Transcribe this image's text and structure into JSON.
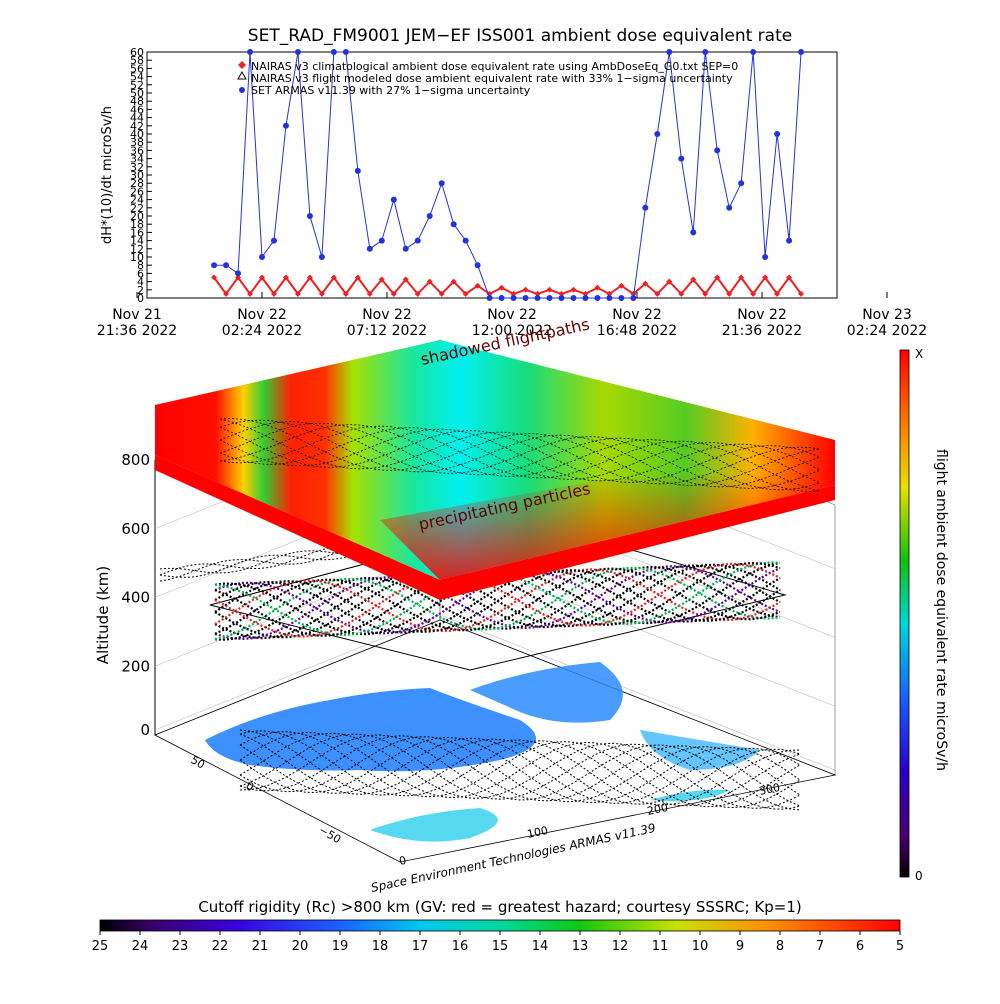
{
  "chart_data": [
    {
      "type": "line",
      "title": "SET_RAD_FM9001  JEM−EF ISS001 ambient dose equivalent rate",
      "ylabel": "dH*(10)/dt microSv/h",
      "ylim": [
        0,
        60
      ],
      "y_ticks": [
        "0",
        "2",
        "4",
        "6",
        "8",
        "10",
        "12",
        "14",
        "16",
        "18",
        "20",
        "22",
        "24",
        "26",
        "28",
        "30",
        "32",
        "34",
        "36",
        "38",
        "40",
        "42",
        "44",
        "46",
        "48",
        "50",
        "52",
        "54",
        "56",
        "58",
        "60"
      ],
      "x_ticks": [
        {
          "line1": "Nov 21",
          "line2": "21:36 2022"
        },
        {
          "line1": "Nov 22",
          "line2": "02:24 2022"
        },
        {
          "line1": "Nov 22",
          "line2": "07:12 2022"
        },
        {
          "line1": "Nov 22",
          "line2": "12:00 2022"
        },
        {
          "line1": "Nov 22",
          "line2": "16:48 2022"
        },
        {
          "line1": "Nov 22",
          "line2": "21:36 2022"
        },
        {
          "line1": "Nov 23",
          "line2": "02:24 2022"
        }
      ],
      "legend_position": "top",
      "legend": [
        {
          "marker": "diamond",
          "color": "#ee2222",
          "label": "NAIRAS v3 climatological ambient dose equivalent rate using AmbDoseEq_G0.txt SEP=0"
        },
        {
          "marker": "triangle",
          "color": "#000000",
          "label": "NAIRAS v3 flight modeled dose ambient equivalent rate with 33% 1−sigma uncertainty"
        },
        {
          "marker": "dot",
          "color": "#2233dd",
          "label": "SET ARMAS v11.39 with 27% 1−sigma uncertainty"
        }
      ],
      "series": [
        {
          "name": "NAIRAS v3 climatological ambient dose equivalent rate using AmbDoseEq_G0.txt SEP=0",
          "color": "#ee2222",
          "x_hours": [
            0,
            0.5,
            1,
            1.5,
            2,
            2.5,
            3,
            3.5,
            4,
            4.5,
            5,
            5.5,
            6,
            6.5,
            7,
            7.5,
            8,
            8.5,
            9,
            9.5,
            10,
            10.5,
            11,
            11.5,
            12,
            12.5,
            13,
            13.5,
            14,
            14.5,
            15,
            15.5,
            16,
            16.5,
            17,
            17.5,
            18,
            18.5,
            19,
            19.5,
            20,
            20.5,
            21,
            21.5,
            22,
            22.5,
            23,
            23.5,
            24,
            24.5
          ],
          "values": [
            5,
            1,
            5,
            1,
            5,
            1,
            5,
            1,
            5,
            1,
            5,
            1,
            5,
            1,
            4.5,
            1,
            4.5,
            1,
            4,
            1,
            4,
            1,
            3,
            1,
            2.5,
            1,
            2,
            1,
            2,
            1,
            2,
            1,
            2.5,
            1,
            3,
            1,
            3.5,
            1,
            4,
            1,
            4.5,
            1,
            5,
            1,
            5,
            1,
            5,
            1,
            5,
            1
          ]
        },
        {
          "name": "SET ARMAS v11.39 with 27% 1−sigma uncertainty",
          "color": "#2233dd",
          "x_hours": [
            0,
            0.5,
            1,
            1.5,
            2,
            2.5,
            3,
            3.5,
            4,
            4.5,
            5,
            5.5,
            6,
            6.5,
            7,
            7.5,
            8,
            8.5,
            9,
            9.5,
            10,
            10.5,
            11,
            11.5,
            12,
            12.5,
            13,
            13.5,
            14,
            14.5,
            15,
            15.5,
            16,
            16.5,
            17,
            17.5,
            18,
            18.5,
            19,
            19.5,
            20,
            20.5,
            21,
            21.5,
            22,
            22.5,
            23,
            23.5,
            24,
            24.5
          ],
          "values": [
            8,
            8,
            6,
            60,
            10,
            14,
            42,
            60,
            20,
            10,
            60,
            60,
            31,
            12,
            14,
            24,
            12,
            14,
            20,
            28,
            18,
            14,
            8,
            0,
            0,
            0,
            0,
            0,
            0,
            0,
            0,
            0,
            0,
            0,
            0,
            0,
            22,
            40,
            60,
            34,
            16,
            60,
            36,
            22,
            28,
            60,
            10,
            40,
            14,
            60
          ]
        }
      ]
    },
    {
      "type": "surface",
      "zlabel": "Altitude (km)",
      "z_ticks": [
        "0",
        "200",
        "400",
        "600",
        "800"
      ],
      "lat_ticks": [
        "50",
        "0",
        "−50"
      ],
      "lon_ticks": [
        "0",
        "100",
        "200",
        "300"
      ],
      "annotations": [
        "shadowed flightpaths",
        "precipitating particles",
        "Space Environment Technologies ARMAS v11.39"
      ]
    },
    {
      "type": "colorbar",
      "label": "flight ambient dose equivalent rate microSv/h",
      "top_label": "X",
      "bottom_label": "0"
    },
    {
      "type": "colorbar",
      "label": "Cutoff rigidity (Rc) >800 km (GV: red = greatest hazard; courtesy SSSRC; Kp=1)",
      "ticks": [
        "25",
        "24",
        "23",
        "22",
        "21",
        "20",
        "19",
        "18",
        "17",
        "16",
        "15",
        "14",
        "13",
        "12",
        "11",
        "10",
        "9",
        "8",
        "7",
        "6",
        "5"
      ]
    }
  ]
}
